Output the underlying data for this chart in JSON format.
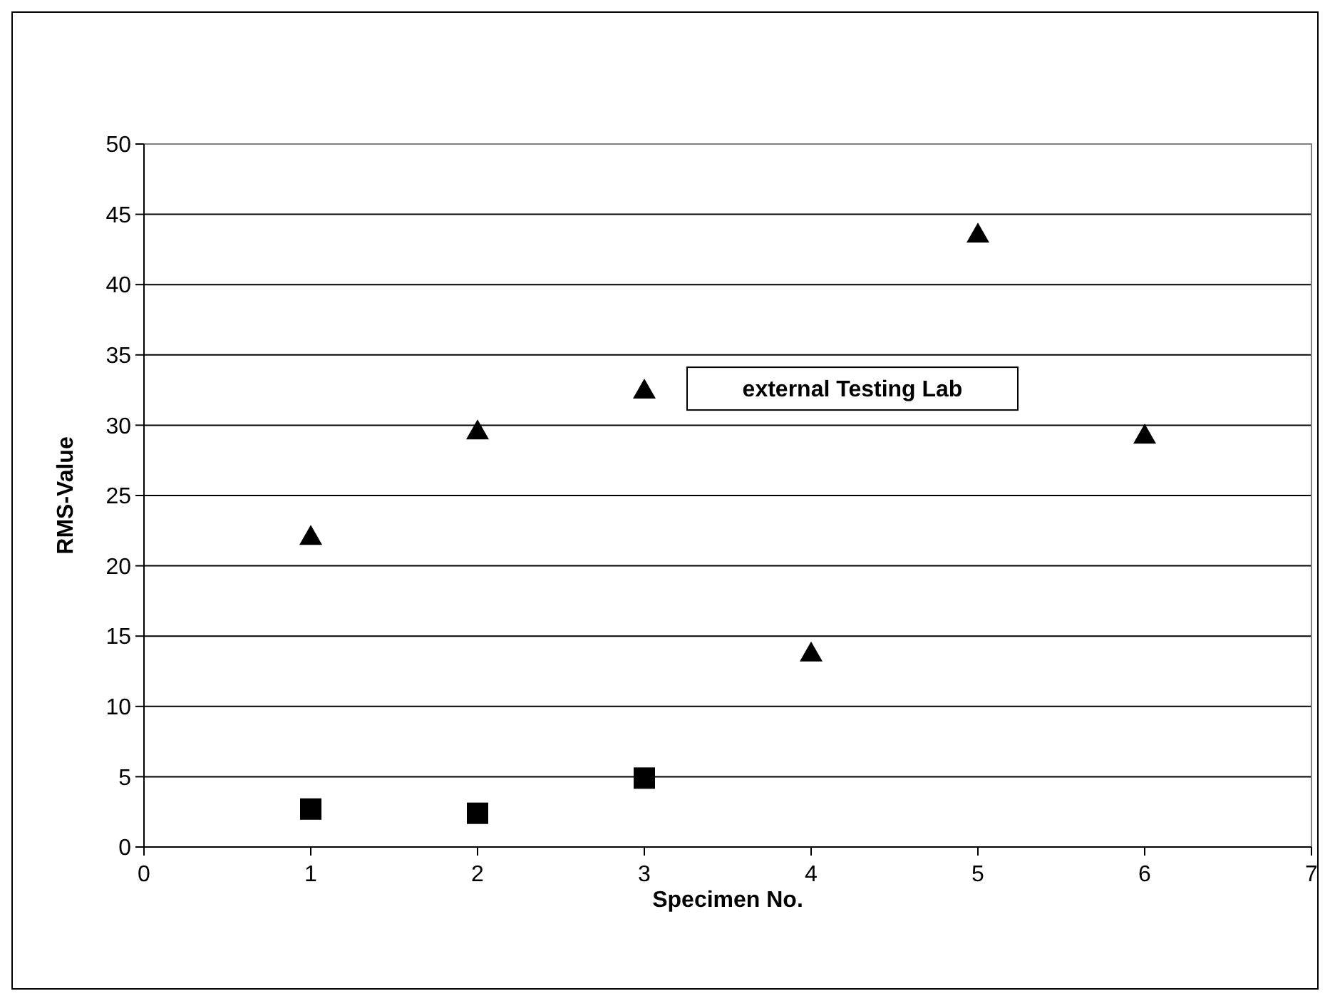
{
  "chart_data": {
    "type": "scatter",
    "xlabel": "Specimen No.",
    "ylabel": "RMS-Value",
    "xlim": [
      0,
      7
    ],
    "xticks": [
      0,
      1,
      2,
      3,
      4,
      5,
      6,
      7
    ],
    "ylim": [
      0,
      50
    ],
    "yticks": [
      0,
      5,
      10,
      15,
      20,
      25,
      30,
      35,
      40,
      45,
      50
    ],
    "grid": "y",
    "series": [
      {
        "name": "external Testing Lab",
        "color": "#000000",
        "marker": "triangle",
        "x": [
          1,
          2,
          3,
          4,
          5,
          6
        ],
        "values": [
          22.1,
          29.6,
          32.5,
          13.8,
          43.6,
          29.3
        ]
      },
      {
        "color": "#000000",
        "marker": "square",
        "x": [
          1,
          2,
          3
        ],
        "values": [
          2.7,
          2.4,
          4.9
        ]
      }
    ]
  }
}
